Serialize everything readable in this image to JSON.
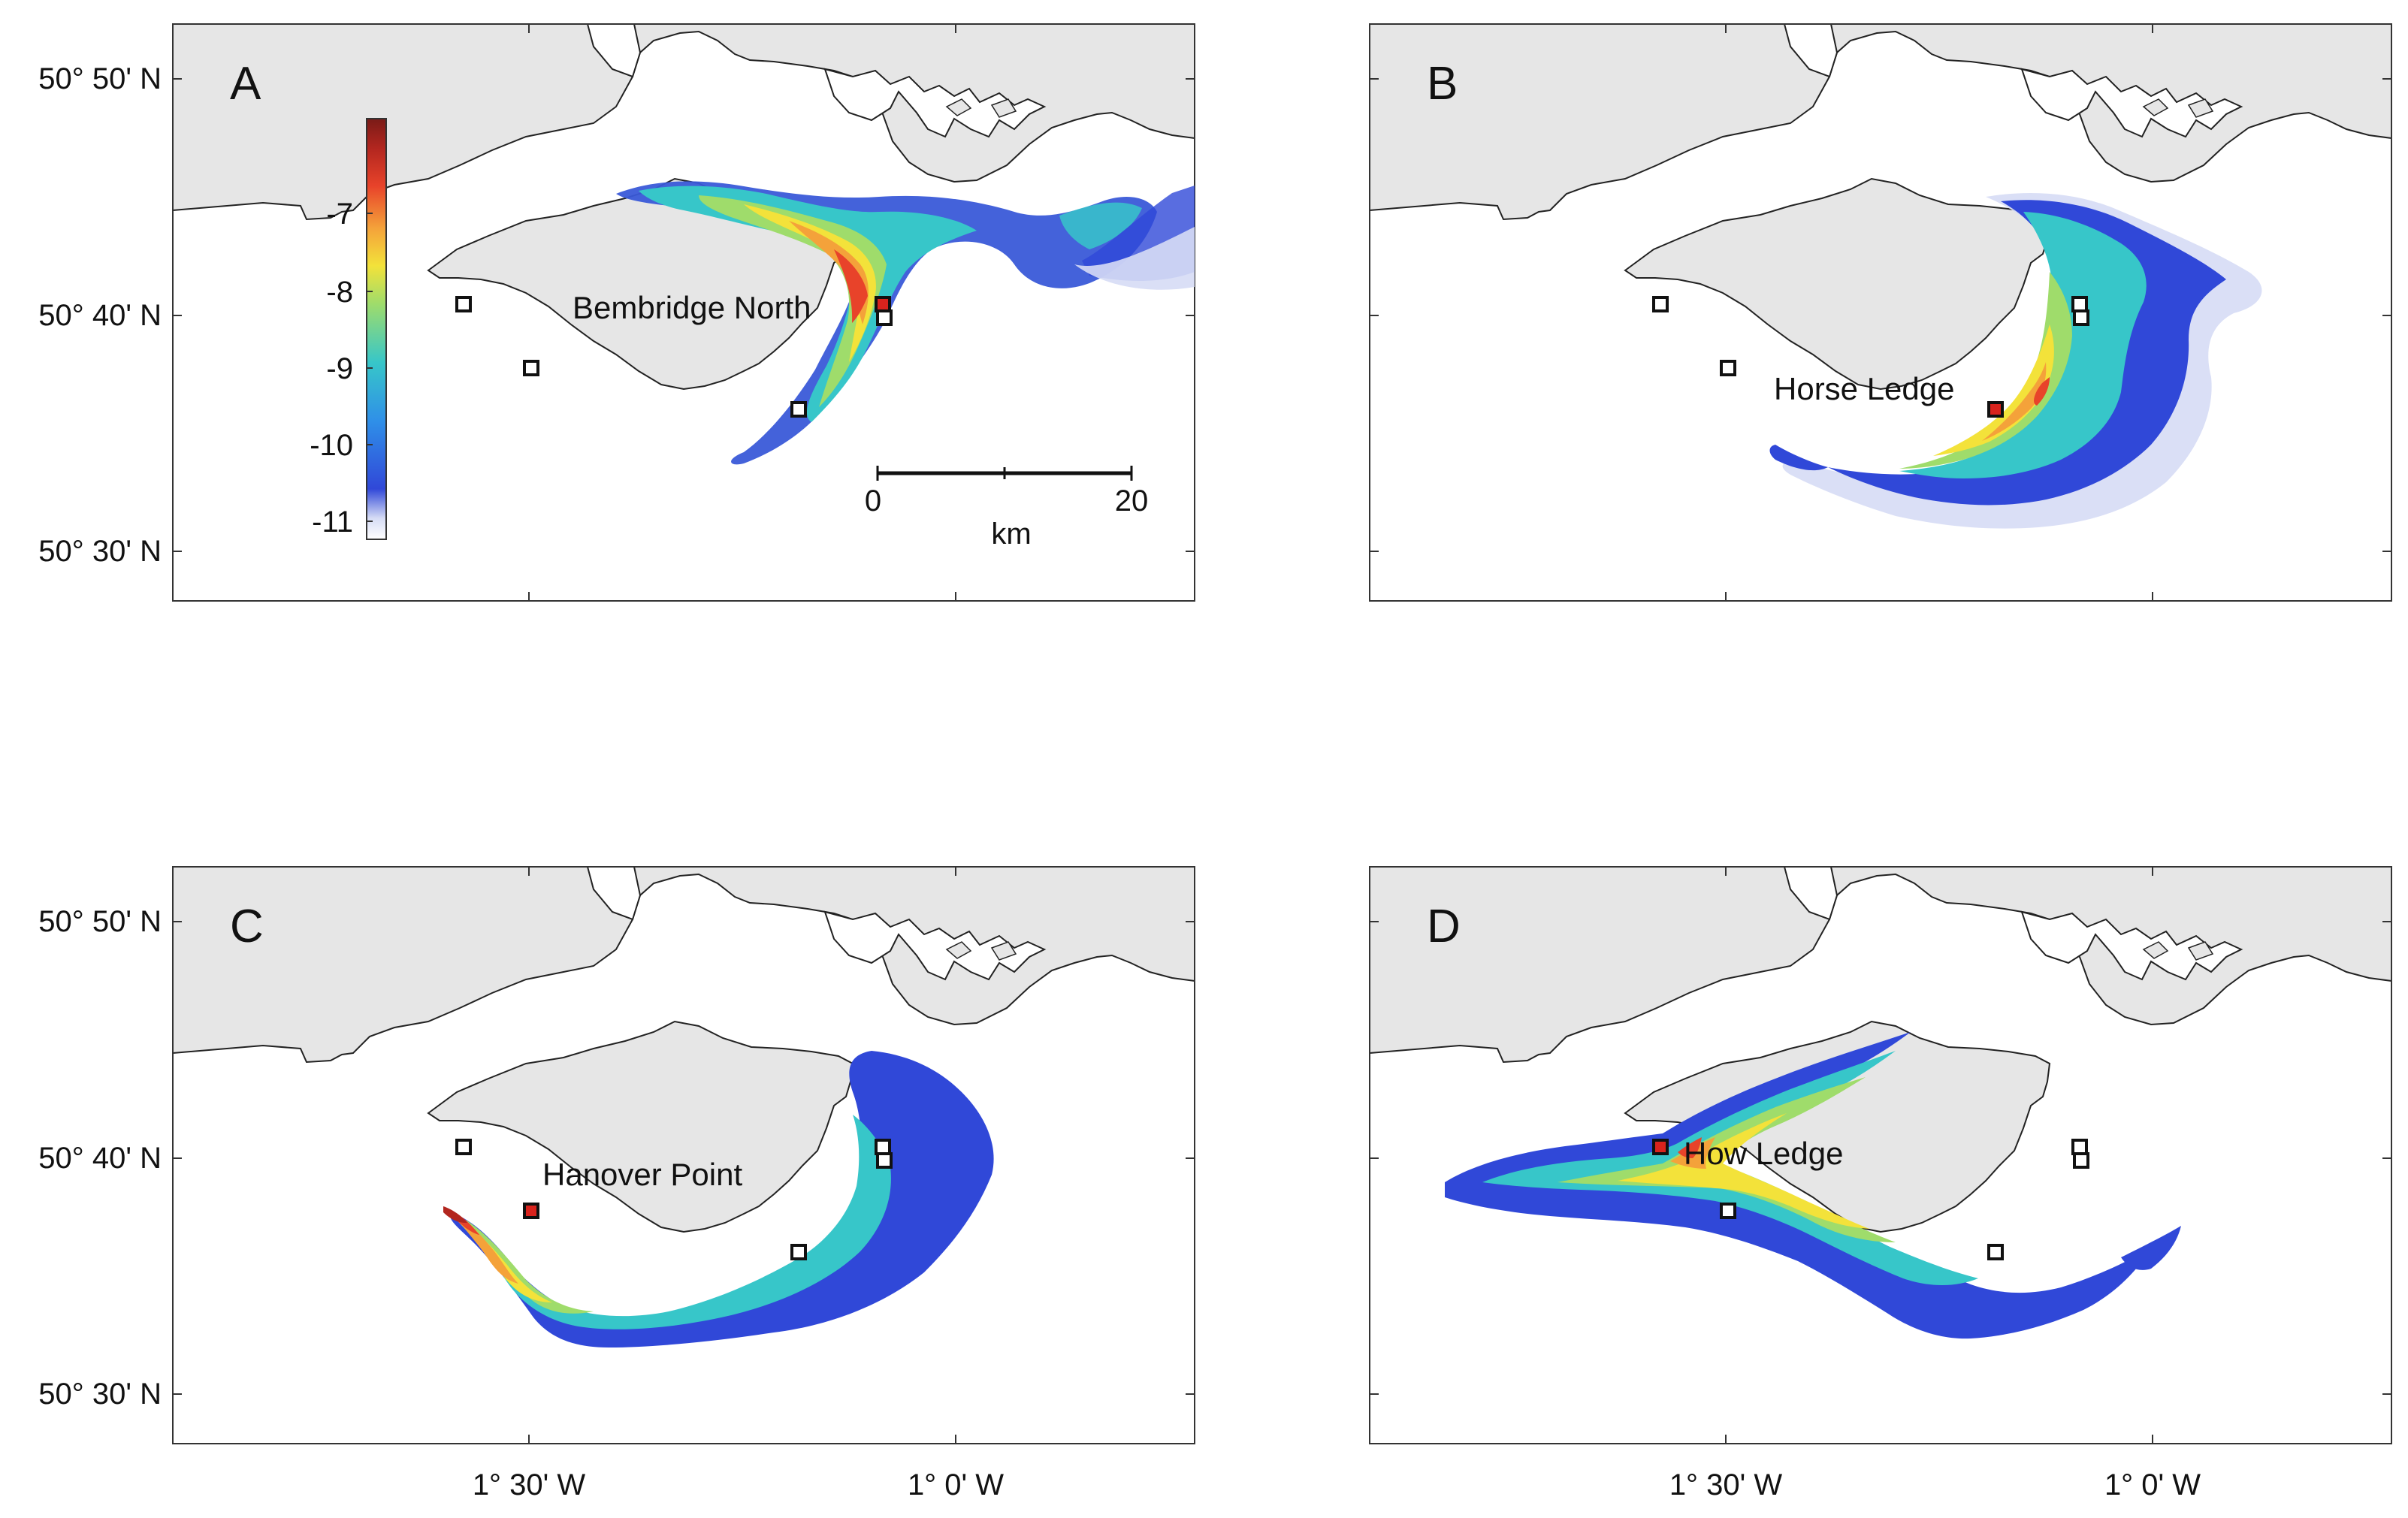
{
  "figure": {
    "axes": {
      "lat_ticks": [
        "50° 50' N",
        "50° 40' N",
        "50° 30' N"
      ],
      "lon_ticks": [
        "1° 30' W",
        "1° 0' W"
      ]
    },
    "colorbar": {
      "ticks": [
        "-7",
        "-8",
        "-9",
        "-10",
        "-11"
      ],
      "colormap": [
        "#ffffff",
        "#d6dcf5",
        "#3048d8",
        "#2f8fe8",
        "#37c6c9",
        "#9fdc6b",
        "#f3e23a",
        "#f4a23a",
        "#e8432a",
        "#b2261f",
        "#7a1b17"
      ]
    },
    "scalebar": {
      "start_label": "0",
      "end_label": "20",
      "unit": "km"
    },
    "colors": {
      "land": "#e6e6e6",
      "sea": "#ffffff",
      "coastline": "#222222",
      "release_marker": "#d9231d",
      "site_marker_fill": "#ffffff"
    },
    "panels": [
      {
        "letter": "A",
        "release_site": "Bembridge North"
      },
      {
        "letter": "B",
        "release_site": "Horse Ledge"
      },
      {
        "letter": "C",
        "release_site": "Hanover Point"
      },
      {
        "letter": "D",
        "release_site": "How Ledge"
      }
    ]
  }
}
